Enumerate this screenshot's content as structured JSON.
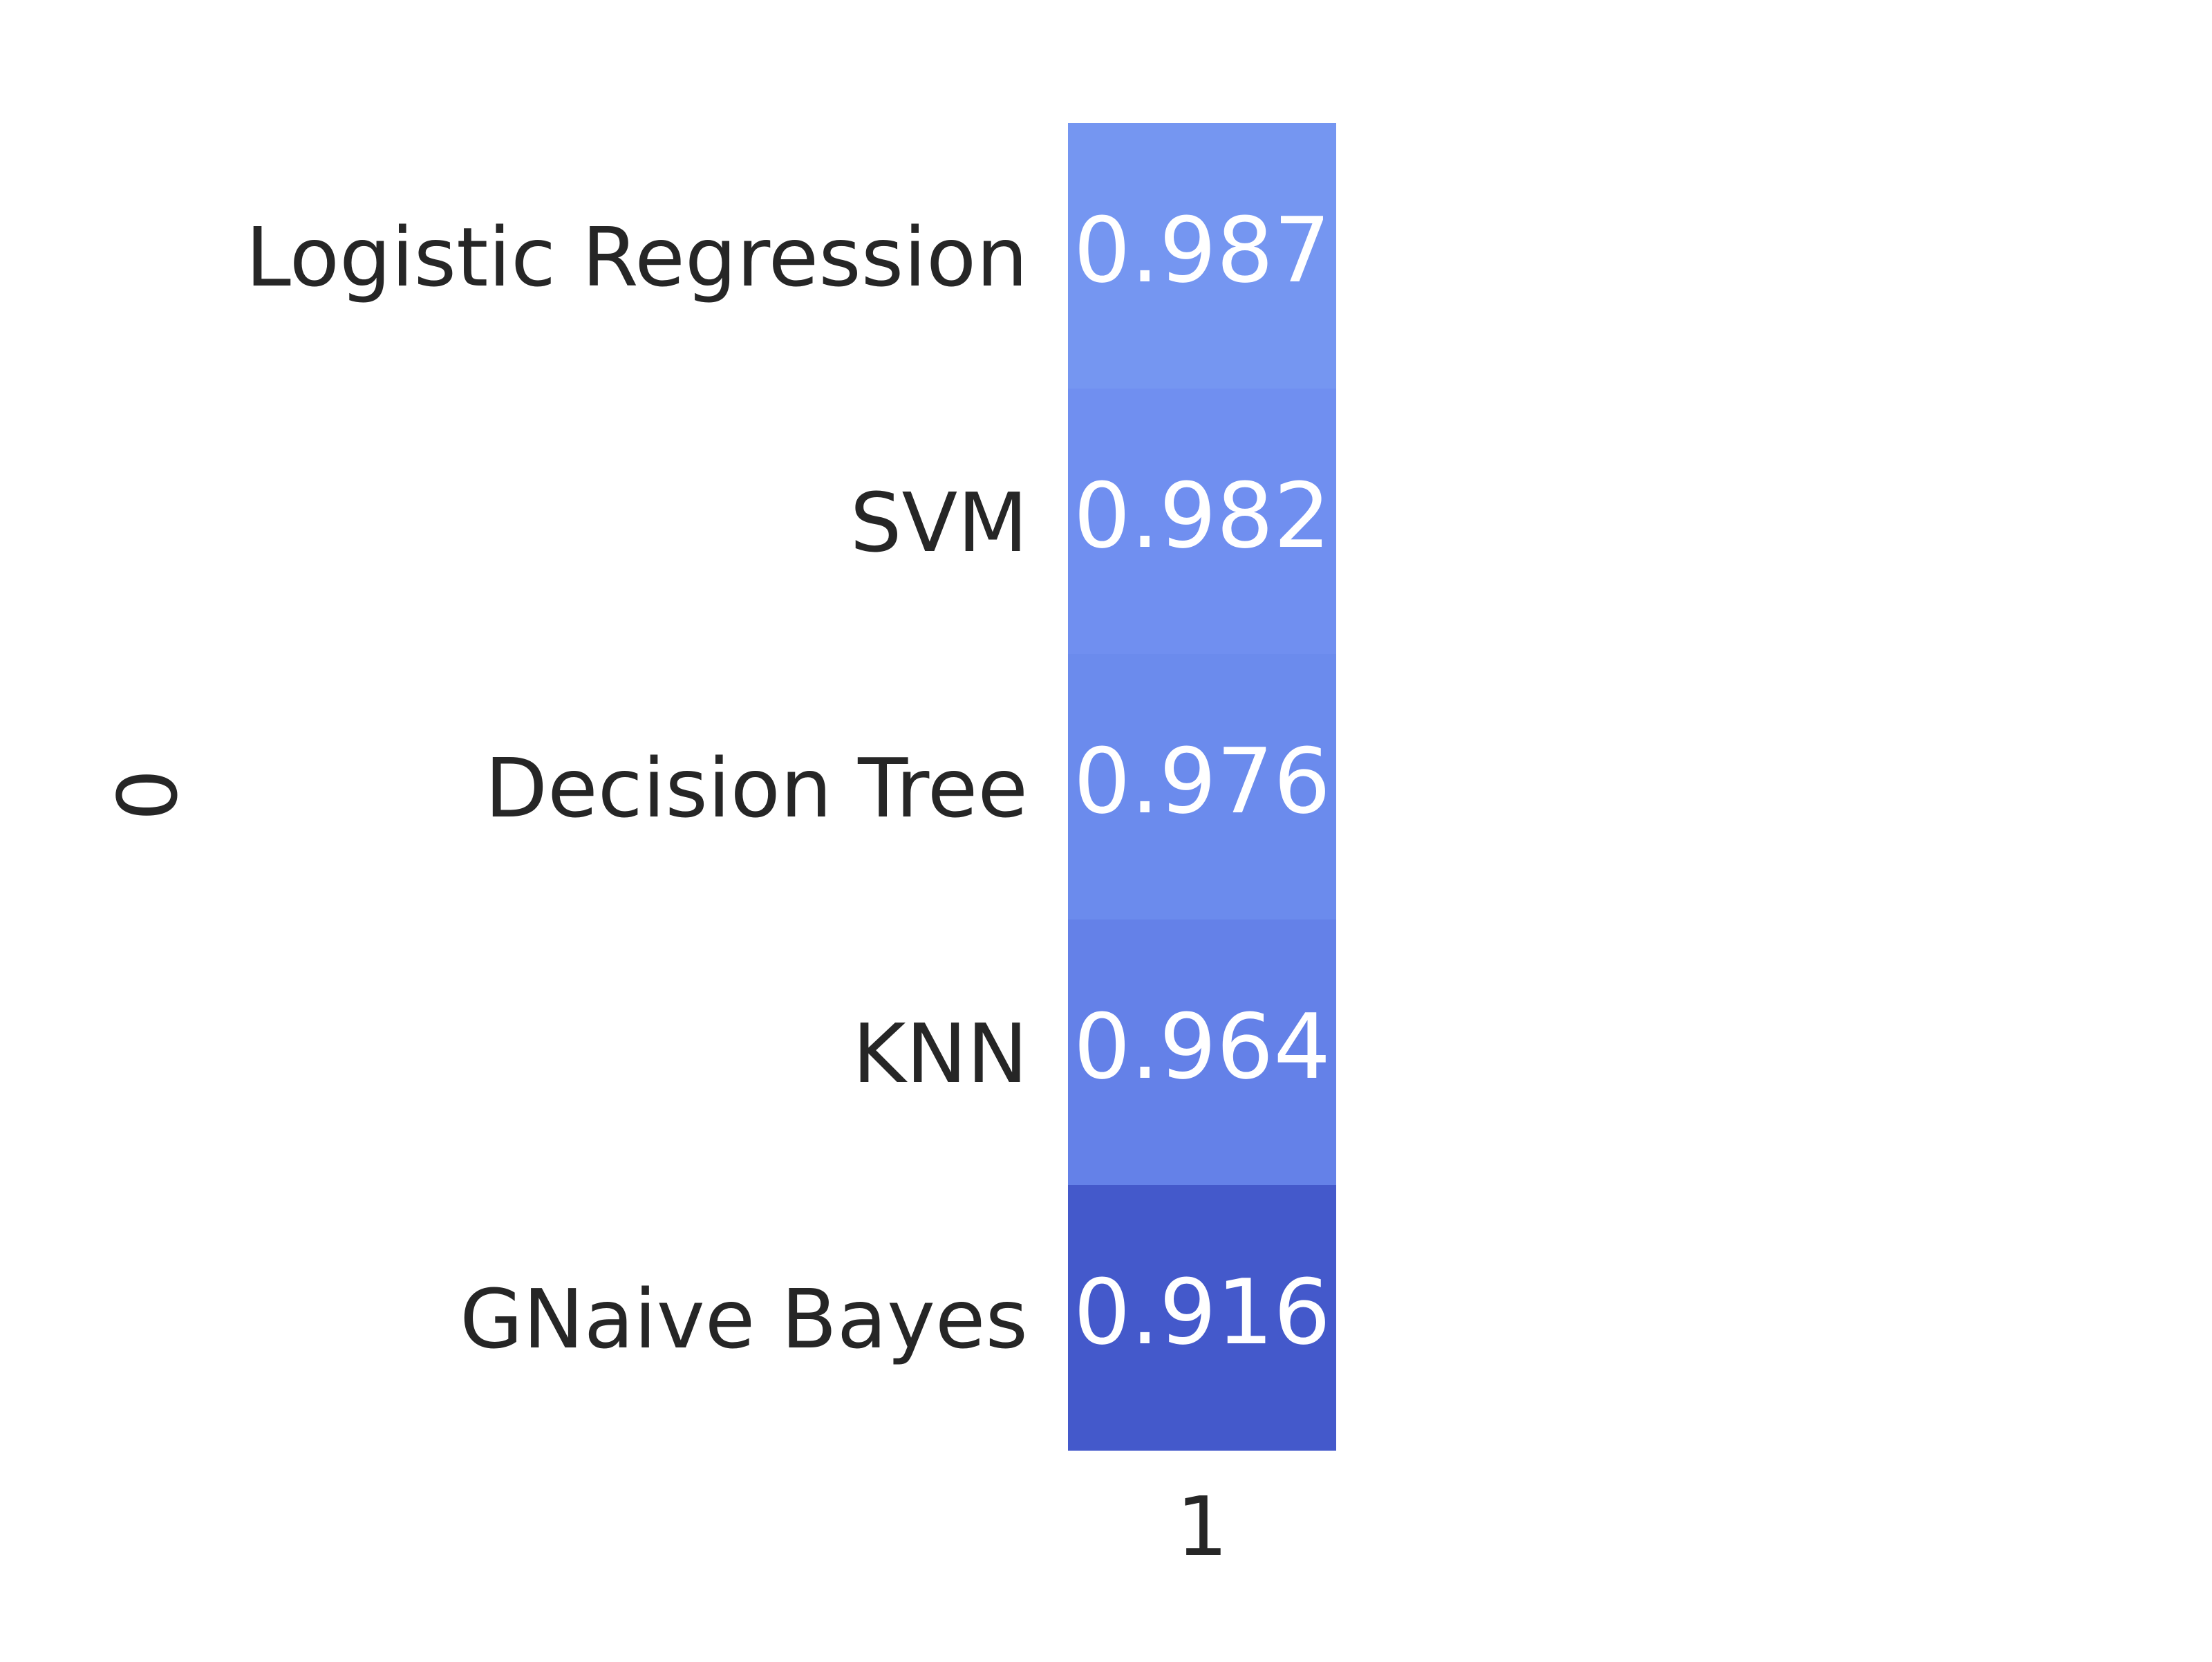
{
  "chart_data": {
    "type": "heatmap",
    "title": "",
    "xlabel": "",
    "ylabel": "0",
    "x_tick_labels": [
      "1"
    ],
    "y_tick_labels": [
      "Logistic Regression",
      "SVM",
      "Decision Tree",
      "KNN",
      "GNaive Bayes"
    ],
    "values": [
      [
        0.987
      ],
      [
        0.982
      ],
      [
        0.976
      ],
      [
        0.964
      ],
      [
        0.916
      ]
    ],
    "annotations": [
      [
        "0.987"
      ],
      [
        "0.982"
      ],
      [
        "0.976"
      ],
      [
        "0.964"
      ],
      [
        "0.916"
      ]
    ],
    "cell_colors": [
      "#7596f1",
      "#708ff0",
      "#6b8bed",
      "#6481e8",
      "#4459cb"
    ],
    "annotation_color": "#ffffff",
    "tick_label_color": "#262626",
    "colorbar": false,
    "grid": false
  }
}
